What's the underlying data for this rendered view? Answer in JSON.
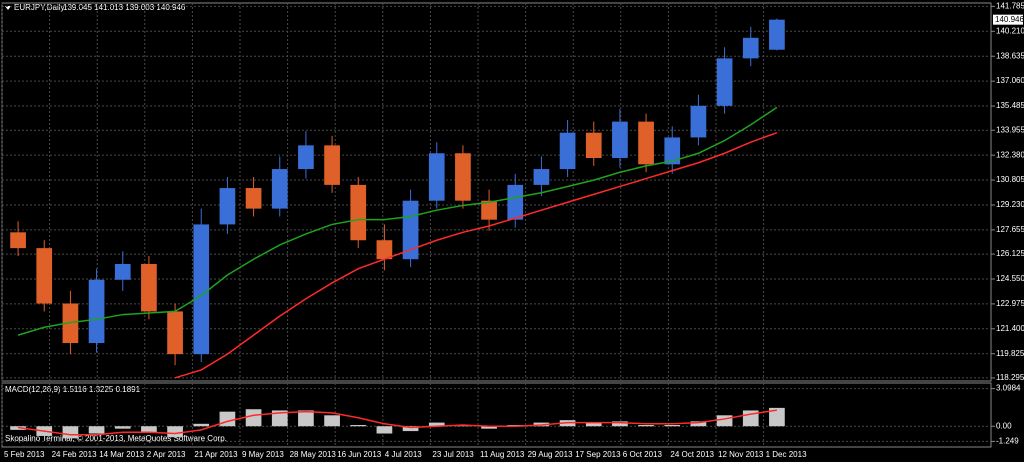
{
  "header": {
    "symbol": "EURJPY,Daily",
    "ohlc": "139.045 141.013 139.003 140.946",
    "copyright": "Skopalino Terminal, © 2001-2013, MetaQuotes Software Corp.",
    "current_price": {
      "value": 140.946,
      "label": "140.946"
    }
  },
  "chart_data": [
    {
      "type": "candlestick",
      "grid": true,
      "x_labels": [
        "5 Feb 2013",
        "24 Feb 2013",
        "14 Mar 2013",
        "2 Apr 2013",
        "21 Apr 2013",
        "9 May 2013",
        "28 May 2013",
        "16 Jun 2013",
        "4 Jul 2013",
        "23 Jul 2013",
        "11 Aug 2013",
        "29 Aug 2013",
        "17 Sep 2013",
        "6 Oct 2013",
        "24 Oct 2013",
        "12 Nov 2013",
        "1 Dec 2013"
      ],
      "open": [
        127.5,
        126.5,
        123.0,
        120.5,
        124.5,
        125.5,
        122.5,
        119.8,
        128.0,
        130.3,
        129.0,
        131.5,
        133.0,
        130.5,
        127.0,
        125.8,
        129.5,
        132.5,
        129.5,
        128.3,
        130.5,
        131.5,
        133.8,
        132.2,
        134.5,
        131.8,
        133.5,
        135.5,
        138.5,
        139.045
      ],
      "high": [
        128.2,
        127.0,
        123.8,
        125.2,
        126.3,
        126.0,
        123.0,
        129.0,
        131.0,
        131.0,
        132.3,
        133.9,
        133.6,
        131.0,
        128.0,
        130.2,
        133.2,
        133.0,
        130.2,
        131.2,
        132.3,
        134.6,
        134.5,
        135.3,
        135.0,
        134.2,
        136.2,
        139.2,
        140.5,
        141.013
      ],
      "low": [
        126.0,
        122.5,
        119.8,
        119.9,
        123.8,
        122.0,
        119.1,
        119.3,
        127.4,
        128.5,
        128.5,
        130.9,
        130.0,
        126.5,
        125.1,
        125.3,
        129.0,
        129.0,
        127.6,
        127.8,
        129.8,
        131.0,
        131.7,
        131.6,
        131.3,
        131.2,
        133.0,
        135.0,
        138.0,
        139.003
      ],
      "close": [
        126.5,
        123.0,
        120.5,
        124.5,
        125.5,
        122.5,
        119.8,
        128.0,
        130.3,
        129.0,
        131.5,
        133.0,
        130.5,
        127.0,
        125.8,
        129.5,
        132.5,
        129.5,
        128.3,
        130.5,
        131.5,
        133.8,
        132.2,
        134.5,
        131.8,
        133.5,
        135.5,
        138.5,
        139.8,
        140.946
      ],
      "up_color": "#3a6fd8",
      "down_color": "#e0602a",
      "series": [
        {
          "color": "#1fa31f",
          "values": [
            121.0,
            121.5,
            121.8,
            122.0,
            122.3,
            122.4,
            122.5,
            123.5,
            124.8,
            125.8,
            126.7,
            127.4,
            128.0,
            128.3,
            128.3,
            128.5,
            128.9,
            129.2,
            129.4,
            129.7,
            130.0,
            130.4,
            130.8,
            131.3,
            131.7,
            132.0,
            132.5,
            133.3,
            134.3,
            135.4
          ]
        },
        {
          "color": "#ff2a2a",
          "values": [
            null,
            null,
            null,
            null,
            null,
            null,
            118.3,
            118.8,
            119.8,
            121.0,
            122.2,
            123.3,
            124.3,
            125.2,
            125.8,
            126.4,
            127.0,
            127.5,
            127.9,
            128.4,
            128.9,
            129.4,
            129.9,
            130.4,
            130.9,
            131.4,
            131.9,
            132.5,
            133.2,
            133.8
          ]
        }
      ],
      "ylim": [
        118.1,
        142.0
      ],
      "yticks": [
        141.785,
        {
          "value": 140.21,
          "label": "140.210"
        },
        138.635,
        {
          "value": 137.06,
          "label": "137.060"
        },
        135.485,
        133.955,
        {
          "value": 132.38,
          "label": "132.380"
        },
        130.805,
        {
          "value": 129.23,
          "label": "129.230"
        },
        127.655,
        126.125,
        {
          "value": 124.55,
          "label": "124.550"
        },
        122.975,
        {
          "value": 121.4,
          "label": "121.400"
        },
        119.825,
        118.295
      ]
    },
    {
      "type": "macd",
      "title": "MACD(12,26,9) 1.5116 1.3225 0.1891",
      "color": "#c8c8c8",
      "values": [
        -0.3,
        -0.8,
        -1.0,
        -0.6,
        -0.2,
        -0.5,
        -0.9,
        0.2,
        1.2,
        1.4,
        1.3,
        1.3,
        0.9,
        0.1,
        -0.6,
        -0.4,
        0.3,
        0.1,
        -0.2,
        0.1,
        0.3,
        0.5,
        0.3,
        0.4,
        0.1,
        0.1,
        0.4,
        0.9,
        1.3,
        1.5116
      ],
      "series": [
        {
          "color": "#ff2a2a",
          "values": [
            -0.1,
            -0.4,
            -0.7,
            -0.7,
            -0.5,
            -0.5,
            -0.6,
            -0.3,
            0.4,
            0.9,
            1.1,
            1.2,
            1.1,
            0.7,
            0.2,
            -0.1,
            0.0,
            0.1,
            0.0,
            0.0,
            0.1,
            0.3,
            0.3,
            0.3,
            0.2,
            0.2,
            0.3,
            0.6,
            1.0,
            1.3225
          ]
        }
      ],
      "ylim": [
        -1.71,
        3.56
      ],
      "yticks": [
        3.0984,
        {
          "value": 0,
          "label": "0.00"
        },
        -1.249
      ]
    }
  ]
}
